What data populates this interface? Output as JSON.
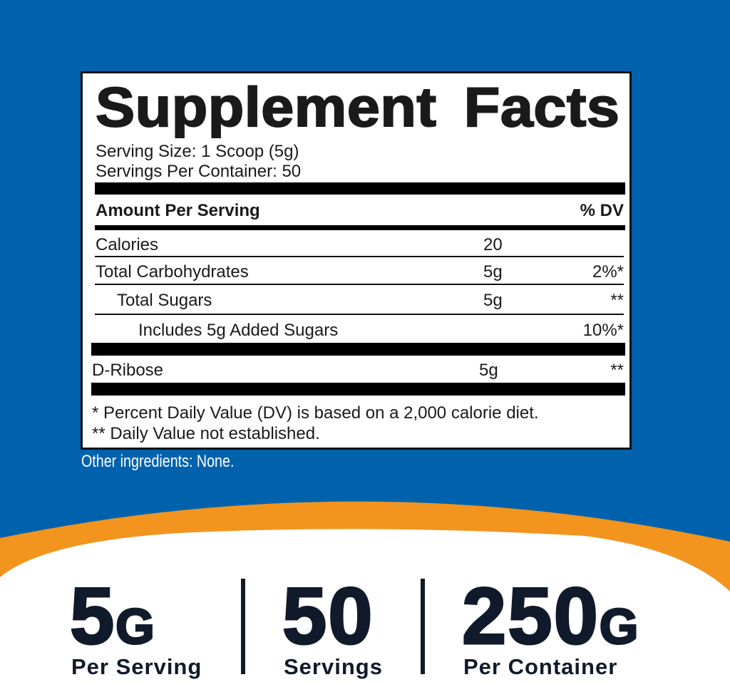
{
  "colors": {
    "background_blue": "#0062ad",
    "orange_band": "#f3941f",
    "text_dark": "#111a2a"
  },
  "panel": {
    "title": "Supplement Facts",
    "serving_size": "Serving Size: 1 Scoop (5g)",
    "servings_per_container": "Servings Per Container: 50",
    "amount_header": "Amount Per Serving",
    "dv_header": "% DV",
    "rows": [
      {
        "name": "Calories",
        "amount": "20",
        "dv": ""
      },
      {
        "name": "Total Carbohydrates",
        "amount": "5g",
        "dv": "2%*"
      },
      {
        "name": "Total Sugars",
        "amount": "5g",
        "dv": "**"
      },
      {
        "name": "Includes 5g Added Sugars",
        "amount": "",
        "dv": "10%*"
      },
      {
        "name": "D-Ribose",
        "amount": "5g",
        "dv": "**"
      }
    ],
    "footnote1": "* Percent Daily Value (DV) is based on a 2,000 calorie diet.",
    "footnote2": "** Daily Value not established."
  },
  "other_ingredients": "Other ingredients: None.",
  "stats": [
    {
      "value": "5",
      "unit": "G",
      "label": "Per Serving"
    },
    {
      "value": "50",
      "unit": "",
      "label": "Servings"
    },
    {
      "value": "250",
      "unit": "G",
      "label": "Per Container"
    }
  ]
}
